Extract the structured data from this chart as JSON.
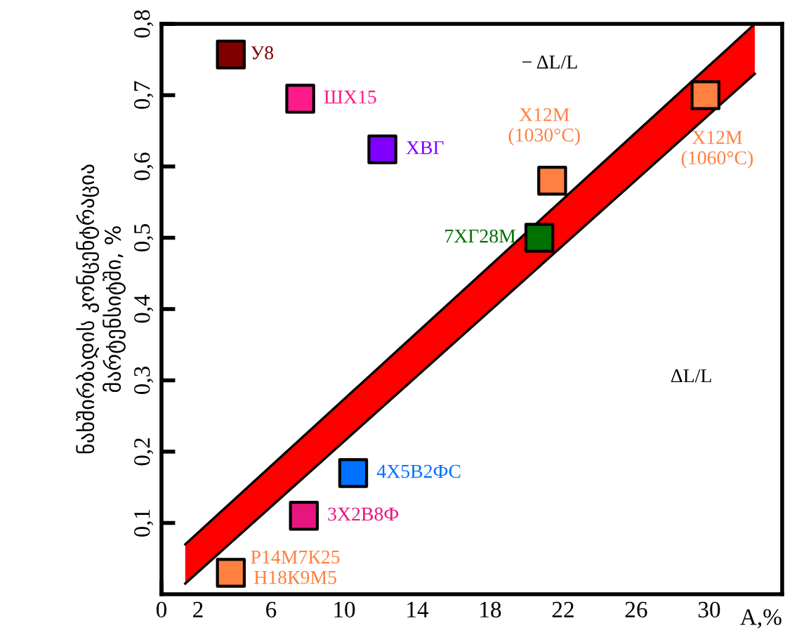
{
  "chart_data": {
    "type": "scatter",
    "ylabel": "ნახშირბადის კონცენტრაცია\nმარტენსიტში, %",
    "xlabel": "A,%",
    "xlim": [
      0,
      34
    ],
    "xticks": [
      0,
      2,
      6,
      10,
      14,
      18,
      22,
      26,
      30
    ],
    "ylim": [
      0,
      0.8
    ],
    "yticks": [
      {
        "value": 0.1,
        "label": "0,1"
      },
      {
        "value": 0.2,
        "label": "0,2"
      },
      {
        "value": 0.3,
        "label": "0,3"
      },
      {
        "value": 0.4,
        "label": "0,4"
      },
      {
        "value": 0.5,
        "label": "0,5"
      },
      {
        "value": 0.6,
        "label": "0,6"
      },
      {
        "value": 0.7,
        "label": "0,7"
      },
      {
        "value": 0.8,
        "label": "0,8"
      }
    ],
    "stacked": true,
    "grid": false,
    "legend": false,
    "annotations": [
      "− ΔL/L",
      "ΔL/L"
    ],
    "series": [
      {
        "type": "area",
        "color": "#ffffff",
        "x": [
          1.3,
          32.5
        ],
        "values": [
          0.015,
          0.73
        ]
      },
      {
        "type": "area",
        "color": "#ff0000",
        "x": [
          1.3,
          32.5
        ],
        "values": [
          0.055,
          0.07
        ]
      },
      {
        "name": "У8",
        "marker": "square",
        "color": "#800000",
        "x": [
          3.8
        ],
        "values": [
          0.757
        ]
      },
      {
        "name": "ШХ15",
        "marker": "square",
        "color": "#ff1a8c",
        "x": [
          7.6
        ],
        "values": [
          0.695
        ]
      },
      {
        "name": "ХВГ",
        "marker": "square",
        "color": "#8000ff",
        "x": [
          12.1
        ],
        "values": [
          0.624
        ]
      },
      {
        "name": "7ХГ28М",
        "marker": "square",
        "color": "#007000",
        "x": [
          20.7
        ],
        "values": [
          0.5
        ]
      },
      {
        "name": "Х12М\n(1030°C)",
        "marker": "square",
        "color": "#ff8040",
        "x": [
          21.4
        ],
        "values": [
          0.58
        ]
      },
      {
        "name": "Х12М\n(1060°C)",
        "marker": "square",
        "color": "#ff8040",
        "x": [
          29.8
        ],
        "values": [
          0.7
        ]
      },
      {
        "name": "4Х5В2ФС",
        "marker": "square",
        "color": "#0070ff",
        "x": [
          10.5
        ],
        "values": [
          0.17
        ]
      },
      {
        "name": "3Х2В8Ф",
        "marker": "square",
        "color": "#e8157e",
        "x": [
          7.8
        ],
        "values": [
          0.11
        ]
      },
      {
        "name": "Р14М7К25\nН18К9М5",
        "marker": "square",
        "color": "#ff8040",
        "x": [
          3.8
        ],
        "values": [
          0.03
        ]
      }
    ]
  }
}
